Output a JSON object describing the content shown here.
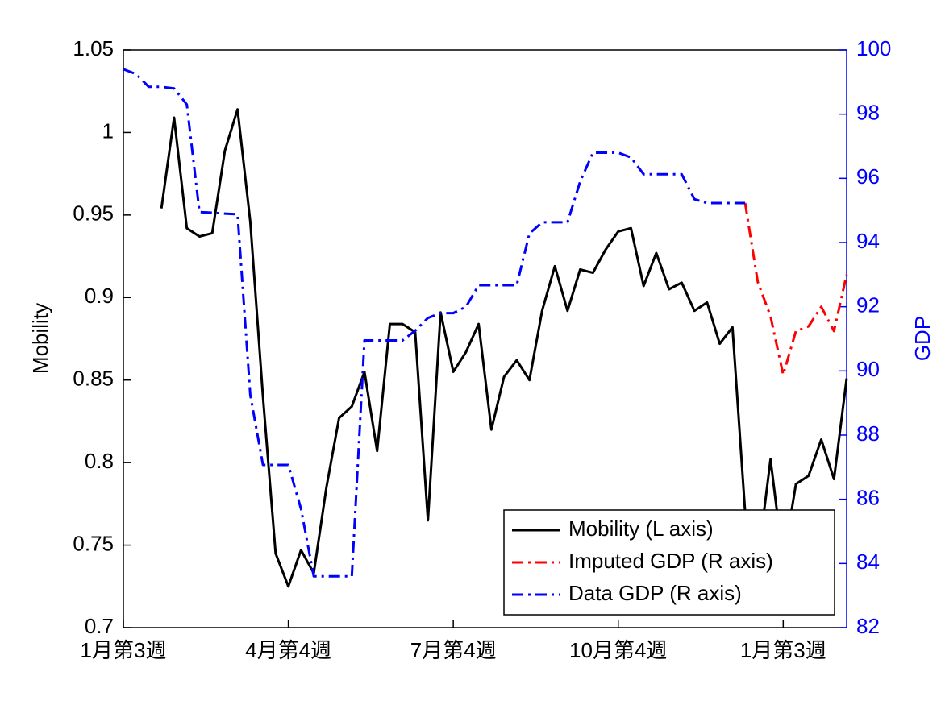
{
  "chart_data": {
    "type": "line",
    "categories": [
      "1月第3週",
      null,
      null,
      null,
      null,
      null,
      null,
      null,
      null,
      null,
      null,
      null,
      null,
      "4月第4週",
      null,
      null,
      null,
      null,
      null,
      null,
      null,
      null,
      null,
      null,
      null,
      null,
      "7月第4週",
      null,
      null,
      null,
      null,
      null,
      null,
      null,
      null,
      null,
      null,
      null,
      null,
      "10月第4週",
      null,
      null,
      null,
      null,
      null,
      null,
      null,
      null,
      null,
      null,
      null,
      null,
      "1月第3週",
      null,
      null,
      null,
      null,
      null
    ],
    "ylabel": "Mobility",
    "y2label": "GDP",
    "y2color": "#0000ff",
    "ylim": [
      0.7,
      1.05
    ],
    "yticks": [
      0.7,
      0.75,
      0.8,
      0.85,
      0.9,
      0.95,
      1,
      1.05
    ],
    "y2lim": [
      82,
      100
    ],
    "y2ticks": [
      82,
      84,
      86,
      88,
      90,
      92,
      94,
      96,
      98,
      100
    ],
    "legend": "lower right",
    "series": [
      {
        "name": "Mobility (L axis)",
        "color": "#000000",
        "linestyle": "solid",
        "values": [
          null,
          null,
          null,
          0.954,
          1.009,
          0.942,
          0.937,
          0.939,
          0.989,
          1.014,
          0.946,
          0.84,
          0.745,
          0.725,
          0.747,
          0.733,
          0.785,
          0.827,
          0.834,
          0.855,
          0.807,
          0.884,
          0.884,
          0.879,
          0.765,
          0.891,
          0.855,
          0.867,
          0.884,
          0.82,
          0.852,
          0.862,
          0.85,
          0.892,
          0.919,
          0.892,
          0.917,
          0.915,
          0.929,
          0.94,
          0.942,
          0.907,
          0.927,
          0.905,
          0.909,
          0.892,
          0.897,
          0.872,
          0.882,
          0.77,
          0.74,
          0.802,
          0.74,
          0.787,
          0.792,
          0.814,
          0.79,
          0.851
        ]
      },
      {
        "name": "Imputed GDP (R axis)",
        "color": "#ff0000",
        "linestyle": "dashdot",
        "axis": "y2",
        "values": [
          null,
          null,
          null,
          null,
          null,
          null,
          null,
          null,
          null,
          null,
          null,
          null,
          null,
          null,
          null,
          null,
          null,
          null,
          null,
          null,
          null,
          null,
          null,
          null,
          null,
          null,
          null,
          null,
          null,
          null,
          null,
          null,
          null,
          null,
          null,
          null,
          null,
          null,
          null,
          null,
          null,
          null,
          null,
          null,
          null,
          null,
          null,
          null,
          null,
          95.23,
          92.77,
          91.7,
          89.88,
          91.24,
          91.39,
          92.0,
          91.24,
          93.0
        ]
      },
      {
        "name": "Data GDP (R axis)",
        "color": "#0000ff",
        "linestyle": "dashdot",
        "axis": "y2",
        "values": [
          99.4,
          99.25,
          98.85,
          98.85,
          98.8,
          98.3,
          94.95,
          94.93,
          94.9,
          94.88,
          89.25,
          87.07,
          87.07,
          87.07,
          85.7,
          83.6,
          83.6,
          83.6,
          83.6,
          90.95,
          90.95,
          90.95,
          90.95,
          91.25,
          91.65,
          91.8,
          91.8,
          92.0,
          92.67,
          92.67,
          92.67,
          92.67,
          94.28,
          94.63,
          94.63,
          94.63,
          95.9,
          96.8,
          96.8,
          96.8,
          96.65,
          96.13,
          96.13,
          96.13,
          96.13,
          95.35,
          95.23,
          95.23,
          95.23,
          95.23,
          null,
          null,
          null,
          null,
          null,
          null,
          null,
          null
        ]
      }
    ]
  }
}
